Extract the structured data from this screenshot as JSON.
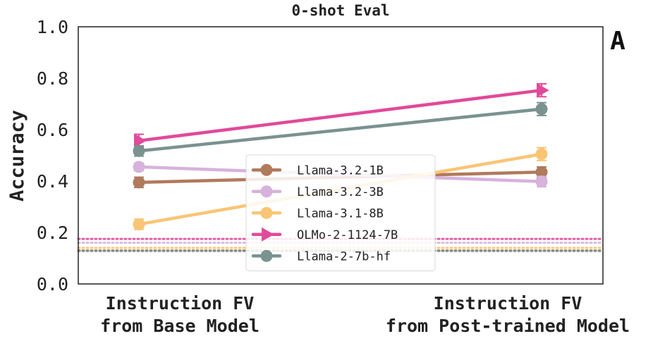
{
  "chart_data": {
    "type": "line",
    "title": "0-shot Eval",
    "panel_label": "A",
    "ylabel": "Accuracy",
    "xlabel": "",
    "categories": [
      [
        "Instruction FV",
        "from Base Model"
      ],
      [
        "Instruction FV",
        "from Post-trained Model"
      ]
    ],
    "ylim": [
      0.0,
      1.0
    ],
    "yticks": [
      "0.0",
      "0.2",
      "0.4",
      "0.6",
      "0.8",
      "1.0"
    ],
    "grid": false,
    "legend_position": "lower-center",
    "series": [
      {
        "name": "Llama-3.2-1B",
        "values": [
          0.395,
          0.435
        ],
        "errors": [
          0.02,
          0.02
        ],
        "color": "#b07a5c",
        "marker": "circle",
        "baseline": 0.13
      },
      {
        "name": "Llama-3.2-3B",
        "values": [
          0.455,
          0.398
        ],
        "errors": [
          0.015,
          0.02
        ],
        "color": "#d6b2dc",
        "marker": "circle",
        "baseline": 0.16
      },
      {
        "name": "Llama-3.1-8B",
        "values": [
          0.232,
          0.505
        ],
        "errors": [
          0.02,
          0.025
        ],
        "color": "#f9c575",
        "marker": "circle",
        "baseline": 0.14
      },
      {
        "name": "OLMo-2-1124-7B",
        "values": [
          0.557,
          0.753
        ],
        "errors": [
          0.025,
          0.025
        ],
        "color": "#e04a9a",
        "marker": "triangle-right",
        "baseline": 0.175
      },
      {
        "name": "Llama-2-7b-hf",
        "values": [
          0.517,
          0.68
        ],
        "errors": [
          0.02,
          0.025
        ],
        "color": "#7a9290",
        "marker": "circle",
        "baseline": 0.128
      }
    ]
  }
}
